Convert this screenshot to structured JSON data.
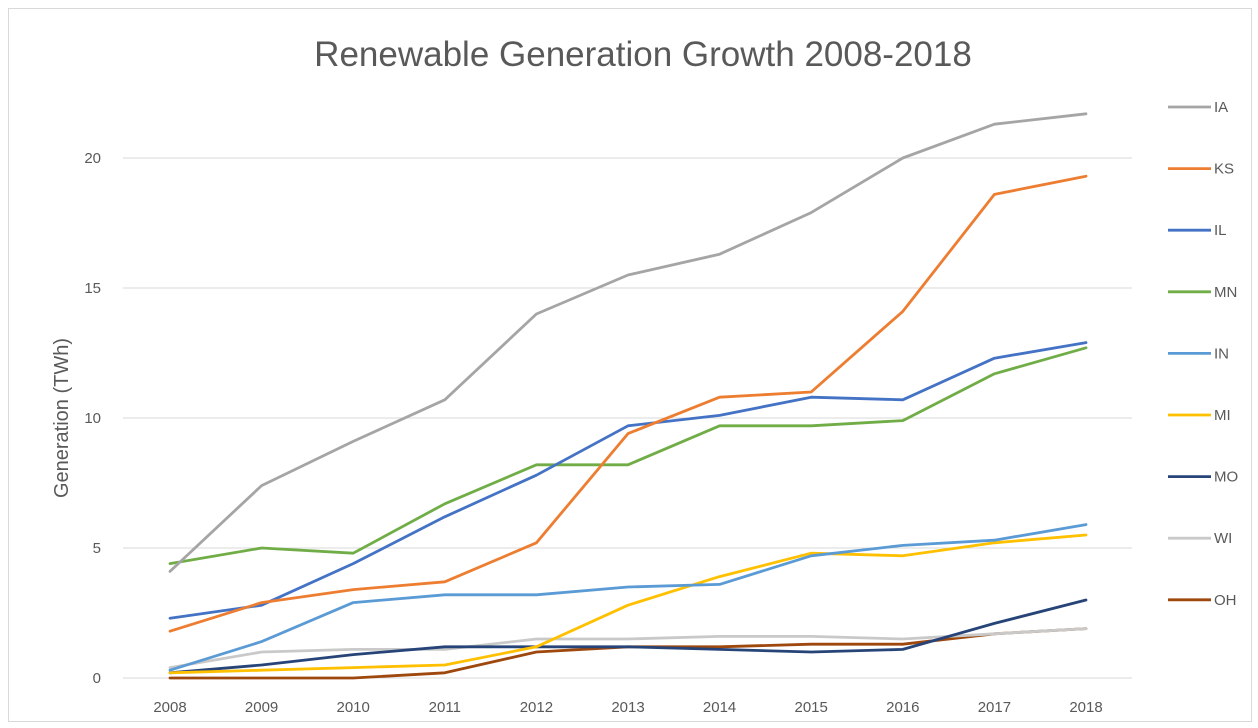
{
  "chart_data": {
    "type": "line",
    "title": "Renewable Generation Growth 2008-2018",
    "xlabel": "",
    "ylabel": "Generation (TWh)",
    "categories": [
      "2008",
      "2009",
      "2010",
      "2011",
      "2012",
      "2013",
      "2014",
      "2015",
      "2016",
      "2017",
      "2018"
    ],
    "ylim": [
      0,
      20
    ],
    "yticks": [
      "0",
      "5",
      "10",
      "15",
      "20"
    ],
    "grid": "horizontal",
    "legend": "right",
    "series": [
      {
        "name": "IA",
        "color": "#a5a5a5",
        "values": [
          4.1,
          7.4,
          9.1,
          10.7,
          14.0,
          15.5,
          16.3,
          17.9,
          20.0,
          21.3,
          21.7
        ]
      },
      {
        "name": "KS",
        "color": "#ed7d31",
        "values": [
          1.8,
          2.9,
          3.4,
          3.7,
          5.2,
          9.4,
          10.8,
          11.0,
          14.1,
          18.6,
          19.3
        ]
      },
      {
        "name": "IL",
        "color": "#4472c4",
        "values": [
          2.3,
          2.8,
          4.4,
          6.2,
          7.8,
          9.7,
          10.1,
          10.8,
          10.7,
          12.3,
          12.9
        ]
      },
      {
        "name": "MN",
        "color": "#70ad47",
        "values": [
          4.4,
          5.0,
          4.8,
          6.7,
          8.2,
          8.2,
          9.7,
          9.7,
          9.9,
          11.7,
          12.7
        ]
      },
      {
        "name": "IN",
        "color": "#5b9bd5",
        "values": [
          0.3,
          1.4,
          2.9,
          3.2,
          3.2,
          3.5,
          3.6,
          4.7,
          5.1,
          5.3,
          5.9
        ]
      },
      {
        "name": "MI",
        "color": "#ffc000",
        "values": [
          0.2,
          0.3,
          0.4,
          0.5,
          1.2,
          2.8,
          3.9,
          4.8,
          4.7,
          5.2,
          5.5
        ]
      },
      {
        "name": "MO",
        "color": "#264478",
        "values": [
          0.2,
          0.5,
          0.9,
          1.2,
          1.2,
          1.2,
          1.1,
          1.0,
          1.1,
          2.1,
          3.0
        ]
      },
      {
        "name": "WI",
        "color": "#c9c9c9",
        "values": [
          0.4,
          1.0,
          1.1,
          1.1,
          1.5,
          1.5,
          1.6,
          1.6,
          1.5,
          1.7,
          1.9
        ]
      },
      {
        "name": "OH",
        "color": "#9e480e",
        "values": [
          0.0,
          0.0,
          0.0,
          0.2,
          1.0,
          1.2,
          1.2,
          1.3,
          1.3,
          1.7,
          1.9
        ]
      }
    ]
  }
}
